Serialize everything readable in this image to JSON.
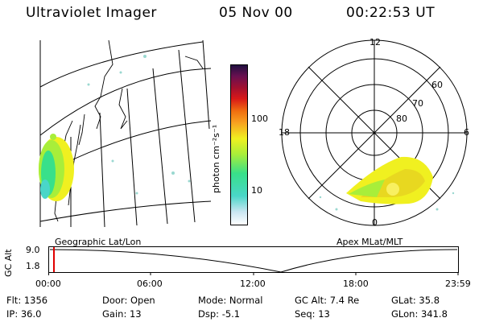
{
  "header": {
    "title": "Ultraviolet Imager",
    "date": "05 Nov 00",
    "time": "00:22:53 UT"
  },
  "map_panel": {
    "label": "Geographic Lat/Lon"
  },
  "colorbar": {
    "unit_label": "photon cm⁻²s⁻¹",
    "ticks": [
      "100",
      "10"
    ],
    "colors": [
      "#ffffff",
      "#c9e6f2",
      "#4ad6c8",
      "#38e08a",
      "#a8ee3a",
      "#f0f020",
      "#f8a020",
      "#f07010",
      "#d81818",
      "#a01030",
      "#6a1050",
      "#201040"
    ]
  },
  "polar_panel": {
    "label": "Apex MLat/MLT",
    "mlt_labels": {
      "top": "12",
      "left": "18",
      "right": "6",
      "bottom": "0"
    },
    "lat_labels": [
      "60",
      "70",
      "80"
    ]
  },
  "timeline": {
    "y_title": "GC Alt",
    "y_ticks": [
      "9.0",
      "1.8"
    ],
    "x_ticks": [
      "00:00",
      "06:00",
      "12:00",
      "18:00",
      "23:59"
    ]
  },
  "info": {
    "flt_label": "Flt:",
    "flt_value": "1356",
    "ip_label": "IP:",
    "ip_value": "36.0",
    "door_label": "Door:",
    "door_value": "Open",
    "gain_label": "Gain:",
    "gain_value": "13",
    "mode_label": "Mode:",
    "mode_value": "Normal",
    "dsp_label": "Dsp:",
    "dsp_value": "-5.1",
    "gcalt_label": "GC Alt:",
    "gcalt_value": "7.4 Re",
    "seq_label": "Seq:",
    "seq_value": "13",
    "glat_label": "GLat:",
    "glat_value": "35.8",
    "glon_label": "GLon:",
    "glon_value": "341.8"
  }
}
